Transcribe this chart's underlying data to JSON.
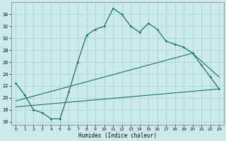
{
  "xlabel": "Humidex (Indice chaleur)",
  "bg_color": "#cceaea",
  "grid_color": "#aad4d4",
  "line_color": "#1a7070",
  "line1_x": [
    0,
    1,
    2,
    3,
    4,
    5,
    6,
    7,
    8,
    9,
    10,
    11,
    12,
    13,
    14,
    15,
    16,
    17,
    18,
    19,
    20,
    21,
    22,
    23
  ],
  "line1_y": [
    22.5,
    20.5,
    18.0,
    17.5,
    16.5,
    16.5,
    21.0,
    26.0,
    30.5,
    31.5,
    32.0,
    35.0,
    34.0,
    32.0,
    31.0,
    32.5,
    31.5,
    29.5,
    29.0,
    28.5,
    27.5,
    25.5,
    23.5,
    21.5
  ],
  "line2_x": [
    0,
    23
  ],
  "line2_y": [
    18.5,
    21.5
  ],
  "line3_x": [
    0,
    20,
    23
  ],
  "line3_y": [
    19.5,
    27.5,
    23.5
  ],
  "ylim": [
    15.5,
    36.0
  ],
  "yticks": [
    16,
    18,
    20,
    22,
    24,
    26,
    28,
    30,
    32,
    34
  ],
  "xticks": [
    0,
    1,
    2,
    3,
    4,
    5,
    6,
    7,
    8,
    9,
    10,
    11,
    12,
    13,
    14,
    15,
    16,
    17,
    18,
    19,
    20,
    21,
    22,
    23
  ],
  "xlim": [
    -0.5,
    23.5
  ]
}
